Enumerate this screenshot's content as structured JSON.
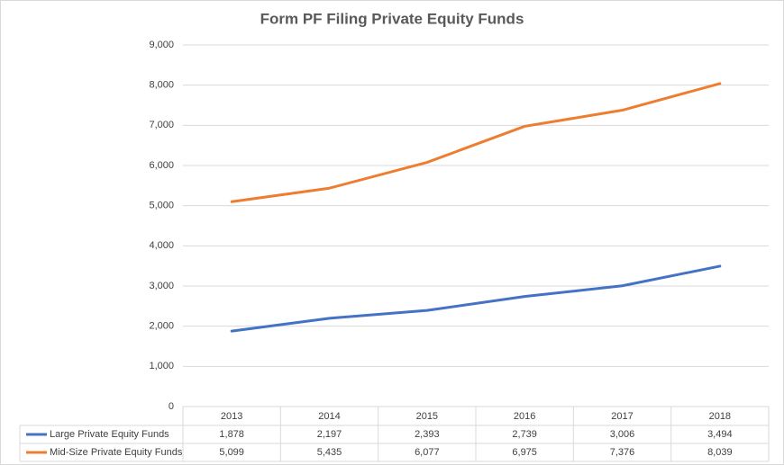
{
  "chart_data": {
    "type": "line",
    "title": "Form PF Filing Private Equity Funds",
    "categories": [
      "2013",
      "2014",
      "2015",
      "2016",
      "2017",
      "2018"
    ],
    "series": [
      {
        "name": "Large Private Equity Funds",
        "color": "#4472c4",
        "values": [
          1878,
          2197,
          2393,
          2739,
          3006,
          3494
        ],
        "value_labels": [
          "1,878",
          "2,197",
          "2,393",
          "2,739",
          "3,006",
          "3,494"
        ]
      },
      {
        "name": "Mid-Size Private Equity Funds",
        "color": "#ed7d31",
        "values": [
          5099,
          5435,
          6077,
          6975,
          7376,
          8039
        ],
        "value_labels": [
          "5,099",
          "5,435",
          "6,077",
          "6,975",
          "7,376",
          "8,039"
        ]
      }
    ],
    "ylim": [
      0,
      9000
    ],
    "yticks": [
      0,
      {
        "value": 1000,
        "label": "1,000"
      },
      {
        "value": 2000,
        "label": "2,000"
      },
      {
        "value": 3000,
        "label": "3,000"
      },
      {
        "value": 4000,
        "label": "4,000"
      },
      {
        "value": 5000,
        "label": "5,000"
      },
      {
        "value": 6000,
        "label": "6,000"
      },
      {
        "value": 7000,
        "label": "7,000"
      },
      {
        "value": 8000,
        "label": "8,000"
      },
      {
        "value": 9000,
        "label": "9,000"
      }
    ],
    "grid": true,
    "legend": "table"
  }
}
